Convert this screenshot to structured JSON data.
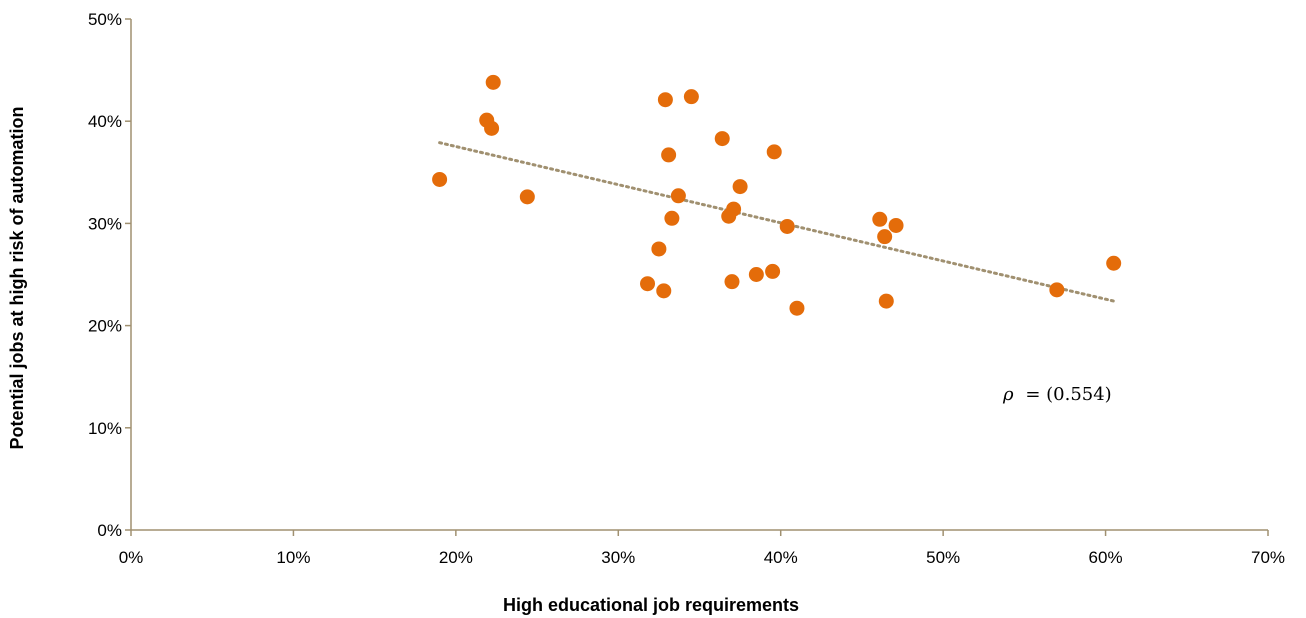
{
  "chart_data": {
    "type": "scatter",
    "xlabel": "High educational job requirements",
    "ylabel": "Potential jobs at high risk of automation",
    "xlim": [
      0,
      70
    ],
    "ylim": [
      0,
      50
    ],
    "x_ticks": [
      "0%",
      "10%",
      "20%",
      "30%",
      "40%",
      "50%",
      "60%",
      "70%"
    ],
    "y_ticks": [
      "0%",
      "10%",
      "20%",
      "30%",
      "40%",
      "50%"
    ],
    "grid": false,
    "legend": "none",
    "marker_color": "#E46C0A",
    "trendline_color": "#A09070",
    "axis_color": "#A09070",
    "annotation": {
      "symbol": "ρ",
      "text": "= (0.554)"
    },
    "trendline": {
      "x": [
        19,
        60.5
      ],
      "y": [
        37.9,
        22.4
      ]
    },
    "points": [
      {
        "x": 19.0,
        "y": 34.3
      },
      {
        "x": 21.9,
        "y": 40.1
      },
      {
        "x": 22.2,
        "y": 39.3
      },
      {
        "x": 22.3,
        "y": 43.8
      },
      {
        "x": 24.4,
        "y": 32.6
      },
      {
        "x": 31.8,
        "y": 24.1
      },
      {
        "x": 32.5,
        "y": 27.5
      },
      {
        "x": 32.8,
        "y": 23.4
      },
      {
        "x": 32.9,
        "y": 42.1
      },
      {
        "x": 33.1,
        "y": 36.7
      },
      {
        "x": 33.3,
        "y": 30.5
      },
      {
        "x": 33.7,
        "y": 32.7
      },
      {
        "x": 34.5,
        "y": 42.4
      },
      {
        "x": 36.4,
        "y": 38.3
      },
      {
        "x": 36.8,
        "y": 30.7
      },
      {
        "x": 37.0,
        "y": 24.3
      },
      {
        "x": 37.1,
        "y": 31.4
      },
      {
        "x": 37.5,
        "y": 33.6
      },
      {
        "x": 38.5,
        "y": 25.0
      },
      {
        "x": 39.5,
        "y": 25.3
      },
      {
        "x": 39.6,
        "y": 37.0
      },
      {
        "x": 40.4,
        "y": 29.7
      },
      {
        "x": 41.0,
        "y": 21.7
      },
      {
        "x": 46.1,
        "y": 30.4
      },
      {
        "x": 46.4,
        "y": 28.7
      },
      {
        "x": 46.5,
        "y": 22.4
      },
      {
        "x": 47.1,
        "y": 29.8
      },
      {
        "x": 57.0,
        "y": 23.5
      },
      {
        "x": 60.5,
        "y": 26.1
      }
    ]
  }
}
